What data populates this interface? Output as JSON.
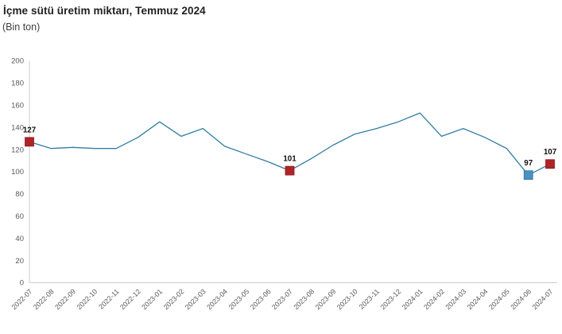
{
  "header": {
    "title": "İçme sütü üretim miktarı, Temmuz 2024",
    "subtitle": "(Bin ton)"
  },
  "chart_data": {
    "type": "line",
    "title": "İçme sütü üretim miktarı, Temmuz 2024",
    "unit_label": "(Bin ton)",
    "categories": [
      "2022-07",
      "2022-08",
      "2022-09",
      "2022-10",
      "2022-11",
      "2022-12",
      "2023-01",
      "2023-02",
      "2023-03",
      "2023-04",
      "2023-05",
      "2023-06",
      "2023-07",
      "2023-08",
      "2023-09",
      "2023-10",
      "2023-11",
      "2023-12",
      "2024-01",
      "2024-02",
      "2024-03",
      "2024-04",
      "2024-05",
      "2024-06",
      "2024-07"
    ],
    "values": [
      127,
      121,
      122,
      121,
      121,
      131,
      145,
      132,
      139,
      123,
      116,
      109,
      101,
      112,
      124,
      134,
      139,
      145,
      153,
      132,
      139,
      131,
      121,
      97,
      107
    ],
    "ylim": [
      0,
      200
    ],
    "ytick_step": 20,
    "grid": false,
    "legend": "none",
    "xlabel": "",
    "ylabel": "",
    "annotated_points": [
      {
        "category": "2022-07",
        "index": 0,
        "value": 127,
        "label": "127",
        "marker": "red"
      },
      {
        "category": "2023-07",
        "index": 12,
        "value": 101,
        "label": "101",
        "marker": "red"
      },
      {
        "category": "2024-06",
        "index": 23,
        "value": 97,
        "label": "97",
        "marker": "blue"
      },
      {
        "category": "2024-07",
        "index": 24,
        "value": 107,
        "label": "107",
        "marker": "red"
      }
    ],
    "colors": {
      "line": "#2e7ea6",
      "marker_red": "#b22325",
      "marker_red_edge": "#8f1a1f",
      "marker_blue": "#4a90c2",
      "marker_blue_edge": "#3372a0",
      "axis": "#cccccc",
      "tick_text": "#595959",
      "value_label": "#111111"
    }
  }
}
